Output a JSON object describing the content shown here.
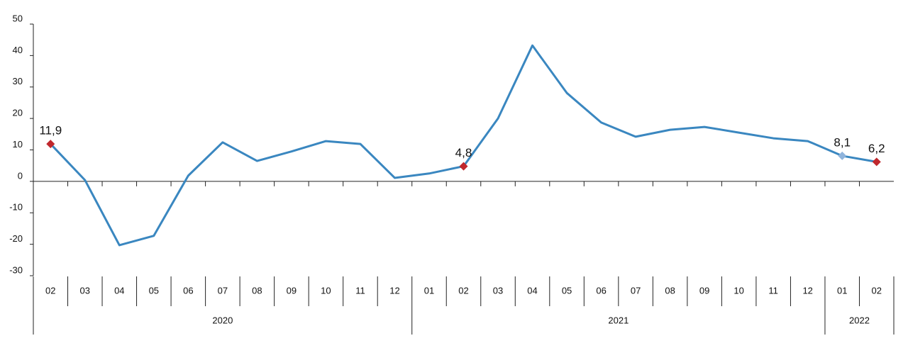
{
  "chart_data": {
    "type": "line",
    "categories": [
      "02",
      "03",
      "04",
      "05",
      "06",
      "07",
      "08",
      "09",
      "10",
      "11",
      "12",
      "01",
      "02",
      "03",
      "04",
      "05",
      "06",
      "07",
      "08",
      "09",
      "10",
      "11",
      "12",
      "01",
      "02"
    ],
    "groups": [
      {
        "name": "2020",
        "size": 11
      },
      {
        "name": "2021",
        "size": 12
      },
      {
        "name": "2022",
        "size": 2
      }
    ],
    "series": [
      {
        "color": "#3a87c0",
        "values": [
          11.9,
          0.4,
          -20.3,
          -17.3,
          1.8,
          12.4,
          6.5,
          9.5,
          12.8,
          11.9,
          1.1,
          2.5,
          4.8,
          20.0,
          43.2,
          28.1,
          18.7,
          14.2,
          16.4,
          17.3,
          15.5,
          13.7,
          12.8,
          8.1,
          6.2
        ],
        "value_labels": [
          "11,9",
          null,
          null,
          null,
          null,
          null,
          null,
          null,
          null,
          null,
          null,
          null,
          "4,8",
          null,
          null,
          null,
          null,
          null,
          null,
          null,
          null,
          null,
          null,
          "8,1",
          "6,2"
        ],
        "marker_colors": [
          "#c0282d",
          null,
          null,
          null,
          null,
          null,
          null,
          null,
          null,
          null,
          null,
          null,
          "#c0282d",
          null,
          null,
          null,
          null,
          null,
          null,
          null,
          null,
          null,
          null,
          "#8fb4dc",
          "#c0282d"
        ]
      }
    ],
    "ylim": [
      -30,
      50
    ],
    "yticks": [
      -30,
      -20,
      -10,
      0,
      10,
      20,
      30,
      40,
      50
    ],
    "grid": false
  }
}
